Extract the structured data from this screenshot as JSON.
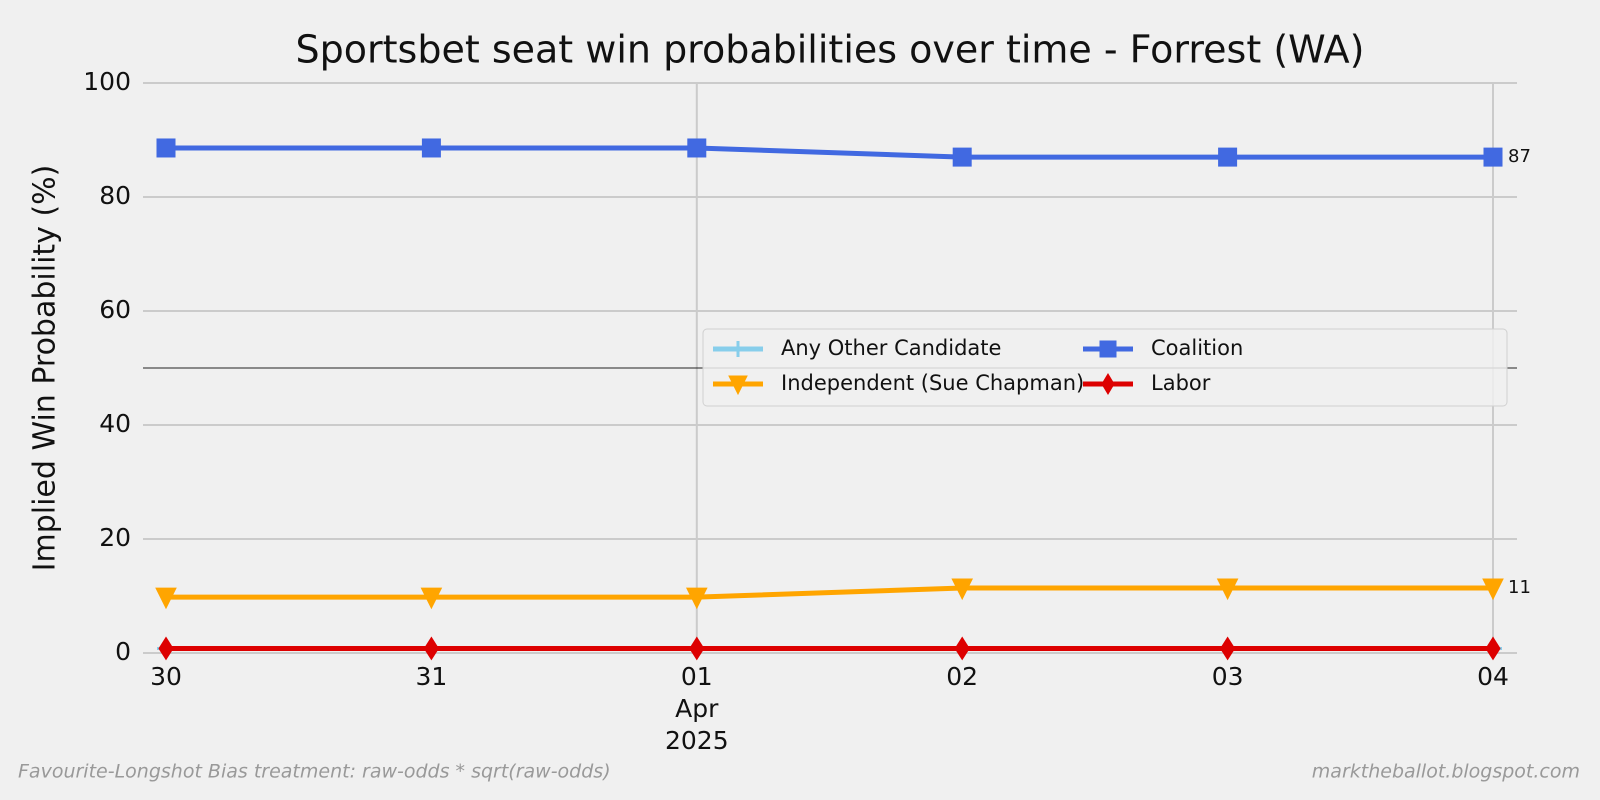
{
  "chart_data": {
    "type": "line",
    "title": "Sportsbet seat win probabilities over time - Forrest (WA)",
    "y_label": "Implied Win Probability (%)",
    "categories": [
      "30",
      "31",
      "01",
      "02",
      "03",
      "04"
    ],
    "x_secondary_label": [
      "Apr",
      "2025"
    ],
    "series": [
      {
        "name": "Any Other Candidate",
        "color": "#87ceeb",
        "marker": "plus",
        "values": [
          0.8,
          0.8,
          0.8,
          0.8,
          0.8,
          0.8
        ]
      },
      {
        "name": "Coalition",
        "color": "#4169e1",
        "marker": "square",
        "values": [
          88.6,
          88.6,
          88.6,
          87.0,
          87.0,
          87.0
        ],
        "value_labels": [
          null,
          null,
          null,
          null,
          null,
          "87"
        ]
      },
      {
        "name": "Independent (Sue Chapman)",
        "color": "#ffa500",
        "marker": "triangle-down",
        "values": [
          9.8,
          9.8,
          9.8,
          11.4,
          11.4,
          11.4
        ],
        "value_labels": [
          null,
          null,
          null,
          null,
          null,
          "11"
        ]
      },
      {
        "name": "Labor",
        "color": "#dd0000",
        "marker": "diamond",
        "values": [
          0.8,
          0.8,
          0.8,
          0.8,
          0.8,
          0.8
        ]
      }
    ],
    "ylim": [
      0,
      100
    ],
    "yticks": [
      0,
      20,
      40,
      60,
      80,
      100
    ],
    "grid": true,
    "hline": 50,
    "legend": "center right",
    "footnote_left": "Favourite-Longshot Bias treatment: raw-odds * sqrt(raw-odds)",
    "footnote_right": "marktheballot.blogspot.com"
  }
}
